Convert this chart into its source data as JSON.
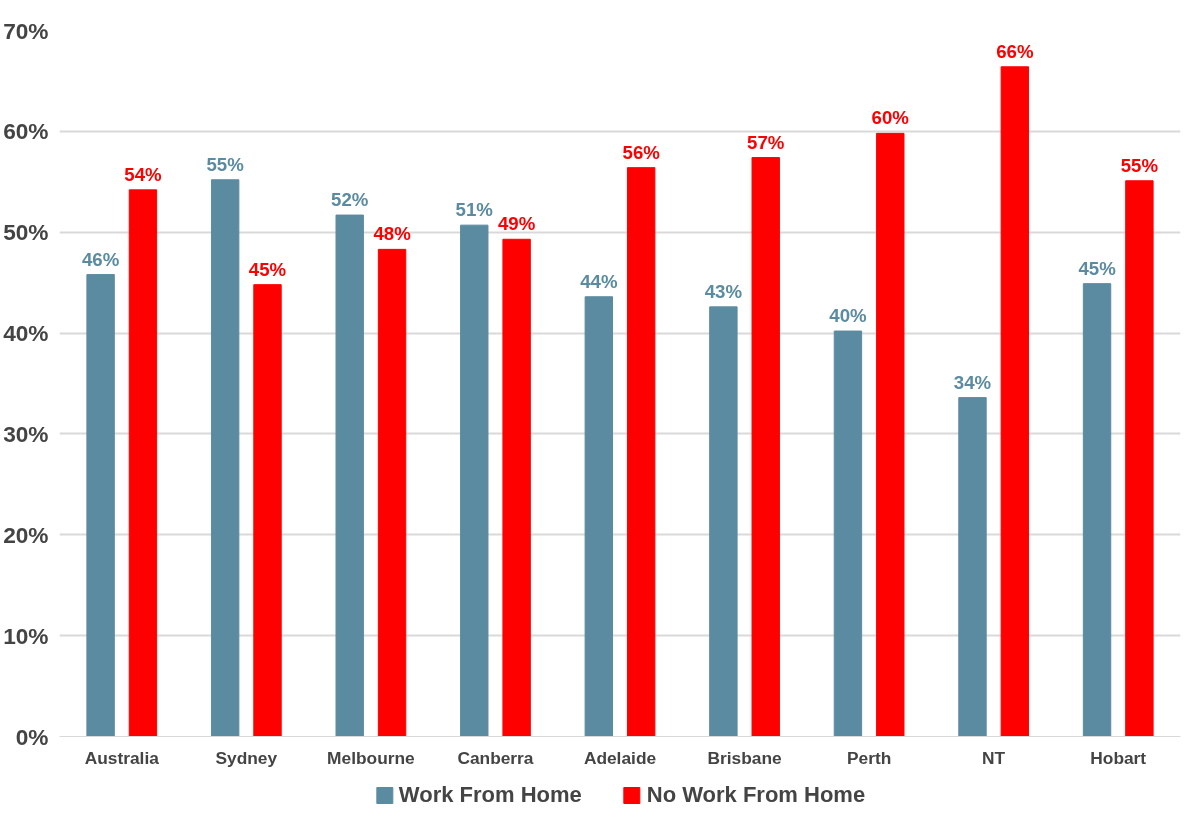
{
  "chart_data": {
    "type": "bar",
    "categories": [
      "Australia",
      "Sydney",
      "Melbourne",
      "Canberra",
      "Adelaide",
      "Brisbane",
      "Perth",
      "NT",
      "Hobart"
    ],
    "series": [
      {
        "name": "Work From Home",
        "color": "#5b8ba0",
        "values": [
          45.8,
          55.2,
          51.7,
          50.7,
          43.6,
          42.6,
          40.2,
          33.6,
          44.9
        ],
        "value_labels": [
          "46%",
          "55%",
          "52%",
          "51%",
          "44%",
          "43%",
          "40%",
          "34%",
          "45%"
        ]
      },
      {
        "name": "No Work From Home",
        "color": "#ff0000",
        "values": [
          54.2,
          44.8,
          48.3,
          49.3,
          56.4,
          57.4,
          59.8,
          66.4,
          55.1
        ],
        "value_labels": [
          "54%",
          "45%",
          "48%",
          "49%",
          "56%",
          "57%",
          "60%",
          "66%",
          "55%"
        ]
      }
    ],
    "ylim": [
      0,
      70
    ],
    "yticks": [
      {
        "value": 0,
        "label": "0%"
      },
      {
        "value": 10,
        "label": "10%"
      },
      {
        "value": 20,
        "label": "20%"
      },
      {
        "value": 30,
        "label": "30%"
      },
      {
        "value": 40,
        "label": "40%"
      },
      {
        "value": 50,
        "label": "50%"
      },
      {
        "value": 60,
        "label": "60%"
      },
      {
        "value": 70,
        "label": "70%"
      }
    ],
    "grid": "y",
    "legend": "bottom"
  }
}
